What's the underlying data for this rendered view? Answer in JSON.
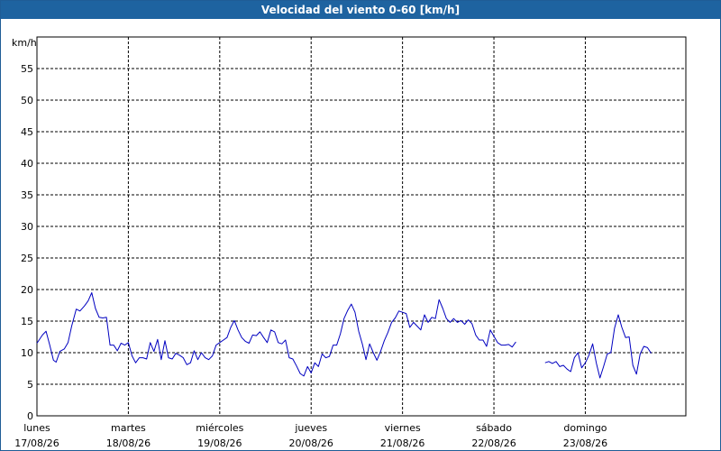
{
  "window": {
    "title": "Velocidad del viento 0-60 [km/h]"
  },
  "chart_data": {
    "type": "line",
    "title": "Velocidad del viento 0-60 [km/h]",
    "ylabel": "km/h",
    "ylim": [
      0,
      60
    ],
    "y_ticks": [
      0,
      5,
      10,
      15,
      20,
      25,
      30,
      35,
      40,
      45,
      50,
      55
    ],
    "x_ticks": [
      {
        "day": "lunes",
        "date": "17/08/26"
      },
      {
        "day": "martes",
        "date": "18/08/26"
      },
      {
        "day": "miércoles",
        "date": "19/08/26"
      },
      {
        "day": "jueves",
        "date": "20/08/26"
      },
      {
        "day": "viernes",
        "date": "21/08/26"
      },
      {
        "day": "sábado",
        "date": "22/08/26"
      },
      {
        "day": "domingo",
        "date": "23/08/26"
      }
    ],
    "x_unit": "days since 17/08/26 00:00",
    "xlim": [
      0,
      7.1
    ],
    "grid": true,
    "line_color": "#0000c0",
    "series": [
      {
        "segments": [
          [
            [
              0.0,
              11.5
            ],
            [
              0.06,
              12.8
            ],
            [
              0.1,
              13.4
            ],
            [
              0.14,
              11.2
            ],
            [
              0.18,
              8.8
            ],
            [
              0.21,
              8.5
            ],
            [
              0.25,
              10.2
            ],
            [
              0.3,
              10.6
            ],
            [
              0.34,
              11.6
            ],
            [
              0.38,
              14.2
            ],
            [
              0.43,
              16.9
            ],
            [
              0.47,
              16.6
            ],
            [
              0.52,
              17.4
            ],
            [
              0.56,
              18.2
            ],
            [
              0.6,
              19.5
            ],
            [
              0.64,
              17.0
            ],
            [
              0.68,
              15.6
            ],
            [
              0.72,
              15.5
            ],
            [
              0.76,
              15.6
            ],
            [
              0.8,
              11.2
            ],
            [
              0.84,
              11.2
            ],
            [
              0.88,
              10.3
            ],
            [
              0.92,
              11.5
            ],
            [
              0.96,
              11.2
            ],
            [
              1.0,
              11.6
            ],
            [
              1.04,
              9.5
            ],
            [
              1.08,
              8.4
            ],
            [
              1.12,
              9.2
            ],
            [
              1.16,
              9.2
            ],
            [
              1.2,
              9.0
            ],
            [
              1.24,
              11.6
            ],
            [
              1.28,
              10.2
            ],
            [
              1.32,
              12.1
            ],
            [
              1.36,
              8.9
            ],
            [
              1.4,
              11.9
            ],
            [
              1.44,
              9.2
            ],
            [
              1.48,
              9.0
            ],
            [
              1.52,
              9.9
            ],
            [
              1.56,
              9.6
            ],
            [
              1.6,
              9.2
            ],
            [
              1.64,
              8.1
            ],
            [
              1.68,
              8.4
            ],
            [
              1.72,
              10.3
            ],
            [
              1.76,
              8.9
            ],
            [
              1.8,
              10.0
            ],
            [
              1.84,
              9.2
            ],
            [
              1.88,
              8.9
            ],
            [
              1.92,
              9.5
            ],
            [
              1.96,
              11.2
            ],
            [
              2.0,
              11.6
            ],
            [
              2.04,
              12.0
            ],
            [
              2.08,
              12.4
            ],
            [
              2.12,
              14.0
            ],
            [
              2.16,
              15.1
            ],
            [
              2.2,
              13.6
            ],
            [
              2.24,
              12.4
            ],
            [
              2.28,
              11.8
            ],
            [
              2.32,
              11.5
            ],
            [
              2.36,
              12.8
            ],
            [
              2.4,
              12.7
            ],
            [
              2.44,
              13.3
            ],
            [
              2.48,
              12.4
            ],
            [
              2.52,
              11.6
            ],
            [
              2.56,
              13.6
            ],
            [
              2.6,
              13.3
            ],
            [
              2.64,
              11.6
            ],
            [
              2.68,
              11.4
            ],
            [
              2.72,
              12.0
            ],
            [
              2.76,
              9.2
            ],
            [
              2.8,
              9.0
            ],
            [
              2.84,
              7.9
            ],
            [
              2.88,
              6.7
            ],
            [
              2.92,
              6.3
            ],
            [
              2.96,
              7.8
            ],
            [
              3.0,
              6.8
            ],
            [
              3.04,
              8.4
            ],
            [
              3.08,
              7.8
            ],
            [
              3.12,
              9.8
            ],
            [
              3.16,
              9.2
            ],
            [
              3.2,
              9.4
            ],
            [
              3.24,
              11.2
            ],
            [
              3.28,
              11.2
            ],
            [
              3.32,
              13.0
            ],
            [
              3.36,
              15.4
            ],
            [
              3.4,
              16.7
            ],
            [
              3.44,
              17.7
            ],
            [
              3.48,
              16.4
            ],
            [
              3.52,
              13.4
            ],
            [
              3.56,
              11.4
            ],
            [
              3.6,
              8.9
            ],
            [
              3.64,
              11.4
            ],
            [
              3.68,
              10.0
            ],
            [
              3.72,
              8.8
            ],
            [
              3.76,
              10.2
            ],
            [
              3.8,
              11.9
            ],
            [
              3.84,
              13.2
            ],
            [
              3.88,
              14.8
            ],
            [
              3.92,
              15.5
            ],
            [
              3.96,
              16.6
            ],
            [
              4.0,
              16.4
            ],
            [
              4.04,
              16.2
            ],
            [
              4.08,
              14.0
            ],
            [
              4.12,
              14.8
            ],
            [
              4.16,
              14.2
            ],
            [
              4.2,
              13.6
            ],
            [
              4.24,
              16.0
            ],
            [
              4.28,
              14.8
            ],
            [
              4.32,
              15.6
            ],
            [
              4.36,
              15.4
            ],
            [
              4.4,
              18.4
            ],
            [
              4.44,
              17.0
            ],
            [
              4.48,
              15.4
            ],
            [
              4.52,
              14.8
            ],
            [
              4.56,
              15.4
            ],
            [
              4.6,
              14.8
            ],
            [
              4.64,
              15.1
            ],
            [
              4.68,
              14.5
            ],
            [
              4.72,
              15.2
            ],
            [
              4.76,
              14.6
            ],
            [
              4.8,
              12.8
            ],
            [
              4.84,
              12.0
            ],
            [
              4.88,
              12.0
            ],
            [
              4.92,
              11.0
            ],
            [
              4.96,
              13.6
            ],
            [
              5.0,
              12.6
            ],
            [
              5.04,
              11.6
            ],
            [
              5.08,
              11.2
            ],
            [
              5.12,
              11.2
            ],
            [
              5.16,
              11.3
            ],
            [
              5.2,
              10.9
            ],
            [
              5.24,
              11.7
            ]
          ],
          [
            [
              5.56,
              8.4
            ],
            [
              5.6,
              8.6
            ],
            [
              5.64,
              8.3
            ],
            [
              5.68,
              8.6
            ],
            [
              5.72,
              7.8
            ],
            [
              5.76,
              8.0
            ],
            [
              5.8,
              7.4
            ],
            [
              5.84,
              7.0
            ],
            [
              5.88,
              9.2
            ],
            [
              5.92,
              10.0
            ],
            [
              5.96,
              7.6
            ],
            [
              6.0,
              8.4
            ],
            [
              6.04,
              9.6
            ],
            [
              6.08,
              11.4
            ],
            [
              6.12,
              8.4
            ],
            [
              6.16,
              6.0
            ],
            [
              6.2,
              7.8
            ],
            [
              6.24,
              9.8
            ],
            [
              6.28,
              10.0
            ],
            [
              6.32,
              13.9
            ],
            [
              6.36,
              16.0
            ],
            [
              6.4,
              14.0
            ],
            [
              6.44,
              12.4
            ],
            [
              6.48,
              12.5
            ],
            [
              6.52,
              8.0
            ],
            [
              6.56,
              6.6
            ],
            [
              6.6,
              9.8
            ],
            [
              6.64,
              11.0
            ],
            [
              6.68,
              10.8
            ],
            [
              6.72,
              9.9
            ]
          ]
        ]
      }
    ]
  }
}
